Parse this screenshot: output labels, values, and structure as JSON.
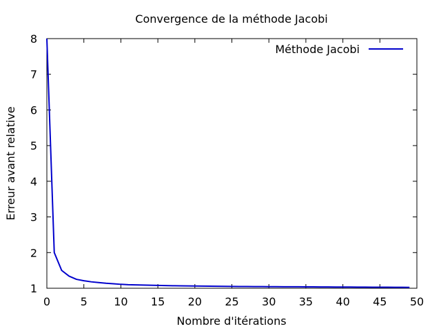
{
  "chart_data": {
    "type": "line",
    "title": "Convergence de la méthode Jacobi",
    "xlabel": "Nombre d'itérations",
    "ylabel": "Erreur avant relative",
    "xlim": [
      0,
      50
    ],
    "ylim": [
      1,
      8
    ],
    "xticks": [
      0,
      5,
      10,
      15,
      20,
      25,
      30,
      35,
      40,
      45,
      50
    ],
    "yticks": [
      1,
      2,
      3,
      4,
      5,
      6,
      7,
      8
    ],
    "grid": false,
    "legend_position": "top-right",
    "series": [
      {
        "name": "Méthode Jacobi",
        "color": "#0000cc",
        "x": [
          0,
          1,
          2,
          3,
          4,
          5,
          6,
          7,
          8,
          9,
          10,
          11,
          12,
          13,
          14,
          15,
          16,
          17,
          18,
          19,
          20,
          21,
          22,
          23,
          24,
          25,
          26,
          27,
          28,
          29,
          30,
          31,
          32,
          33,
          34,
          35,
          36,
          37,
          38,
          39,
          40,
          41,
          42,
          43,
          44,
          45,
          46,
          47,
          48,
          49
        ],
        "y": [
          8.0,
          2.0,
          1.5,
          1.34,
          1.25,
          1.21,
          1.18,
          1.16,
          1.14,
          1.125,
          1.11,
          1.1,
          1.095,
          1.09,
          1.085,
          1.08,
          1.075,
          1.07,
          1.068,
          1.065,
          1.062,
          1.06,
          1.058,
          1.055,
          1.053,
          1.05,
          1.049,
          1.048,
          1.046,
          1.045,
          1.044,
          1.043,
          1.042,
          1.041,
          1.04,
          1.039,
          1.038,
          1.037,
          1.036,
          1.035,
          1.034,
          1.033,
          1.032,
          1.031,
          1.03,
          1.029,
          1.028,
          1.027,
          1.026,
          1.025
        ]
      }
    ]
  }
}
